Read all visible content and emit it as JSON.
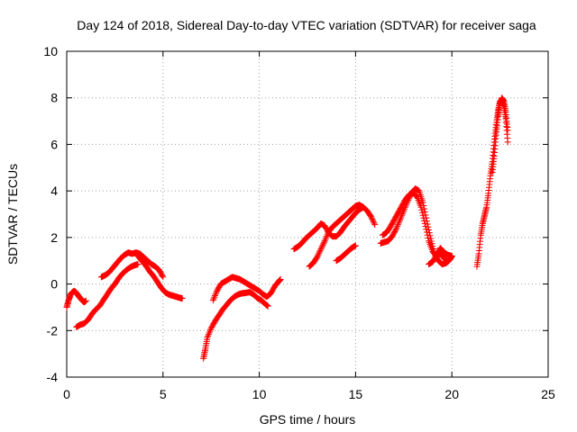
{
  "chart_data": {
    "type": "scatter",
    "title": "Day 124 of 2018, Sidereal Day-to-day VTEC variation (SDTVAR) for receiver saga",
    "xlabel": "GPS time / hours",
    "ylabel": "SDTVAR / TECUs",
    "xlim": [
      0,
      25
    ],
    "ylim": [
      -4,
      10
    ],
    "xticks": [
      0,
      5,
      10,
      15,
      20,
      25
    ],
    "yticks": [
      -4,
      -2,
      0,
      2,
      4,
      6,
      8,
      10
    ],
    "grid": true,
    "marker": "plus",
    "color": "#ff0000",
    "series": [
      {
        "name": "SDTVAR",
        "segments": [
          [
            [
              0.0,
              -1.0
            ],
            [
              0.1,
              -0.7
            ],
            [
              0.2,
              -0.45
            ],
            [
              0.3,
              -0.35
            ],
            [
              0.4,
              -0.3
            ],
            [
              0.5,
              -0.38
            ],
            [
              0.6,
              -0.5
            ],
            [
              0.7,
              -0.6
            ],
            [
              0.8,
              -0.7
            ],
            [
              0.9,
              -0.78
            ],
            [
              1.0,
              -0.72
            ]
          ],
          [
            [
              0.5,
              -1.85
            ],
            [
              0.7,
              -1.75
            ],
            [
              0.9,
              -1.7
            ],
            [
              1.1,
              -1.55
            ],
            [
              1.3,
              -1.3
            ],
            [
              1.5,
              -1.1
            ],
            [
              1.7,
              -0.95
            ],
            [
              1.9,
              -0.7
            ],
            [
              2.1,
              -0.45
            ],
            [
              2.3,
              -0.2
            ],
            [
              2.5,
              0.0
            ],
            [
              2.7,
              0.25
            ],
            [
              2.9,
              0.45
            ],
            [
              3.1,
              0.6
            ],
            [
              3.3,
              0.72
            ],
            [
              3.5,
              0.8
            ],
            [
              3.7,
              0.85
            ]
          ],
          [
            [
              1.8,
              0.3
            ],
            [
              2.0,
              0.38
            ],
            [
              2.2,
              0.5
            ],
            [
              2.4,
              0.7
            ],
            [
              2.6,
              0.9
            ],
            [
              2.8,
              1.1
            ],
            [
              3.0,
              1.25
            ],
            [
              3.2,
              1.35
            ],
            [
              3.4,
              1.3
            ],
            [
              3.6,
              1.35
            ],
            [
              3.8,
              1.3
            ],
            [
              4.0,
              1.15
            ],
            [
              4.2,
              1.0
            ],
            [
              4.4,
              0.85
            ],
            [
              4.6,
              0.75
            ],
            [
              4.8,
              0.6
            ],
            [
              5.0,
              0.3
            ]
          ],
          [
            [
              3.7,
              1.2
            ],
            [
              3.9,
              1.0
            ],
            [
              4.1,
              0.8
            ],
            [
              4.3,
              0.55
            ],
            [
              4.5,
              0.35
            ],
            [
              4.7,
              0.1
            ],
            [
              4.9,
              -0.15
            ],
            [
              5.1,
              -0.35
            ],
            [
              5.3,
              -0.45
            ],
            [
              5.5,
              -0.5
            ],
            [
              5.7,
              -0.55
            ],
            [
              5.9,
              -0.6
            ],
            [
              6.0,
              -0.62
            ]
          ],
          [
            [
              7.1,
              -3.2
            ],
            [
              7.2,
              -2.8
            ],
            [
              7.3,
              -2.3
            ],
            [
              7.5,
              -1.9
            ],
            [
              7.7,
              -1.6
            ],
            [
              7.9,
              -1.35
            ],
            [
              8.1,
              -1.1
            ],
            [
              8.3,
              -0.9
            ],
            [
              8.5,
              -0.7
            ],
            [
              8.7,
              -0.55
            ],
            [
              8.9,
              -0.45
            ],
            [
              9.1,
              -0.4
            ],
            [
              9.3,
              -0.38
            ],
            [
              9.5,
              -0.35
            ],
            [
              9.7,
              -0.45
            ],
            [
              9.9,
              -0.6
            ],
            [
              10.1,
              -0.7
            ],
            [
              10.3,
              -0.85
            ],
            [
              10.45,
              -0.95
            ]
          ],
          [
            [
              7.6,
              -0.7
            ],
            [
              7.8,
              -0.3
            ],
            [
              8.0,
              0.0
            ],
            [
              8.2,
              0.1
            ],
            [
              8.4,
              0.2
            ],
            [
              8.6,
              0.3
            ],
            [
              8.8,
              0.25
            ],
            [
              9.0,
              0.2
            ],
            [
              9.2,
              0.1
            ],
            [
              9.4,
              0.0
            ],
            [
              9.6,
              -0.1
            ],
            [
              9.8,
              -0.2
            ],
            [
              10.0,
              -0.3
            ],
            [
              10.2,
              -0.45
            ],
            [
              10.4,
              -0.55
            ],
            [
              10.6,
              -0.4
            ],
            [
              10.8,
              -0.1
            ],
            [
              11.0,
              0.1
            ],
            [
              11.1,
              0.2
            ]
          ],
          [
            [
              11.8,
              1.5
            ],
            [
              12.0,
              1.6
            ],
            [
              12.2,
              1.75
            ],
            [
              12.4,
              1.95
            ],
            [
              12.6,
              2.1
            ],
            [
              12.8,
              2.25
            ],
            [
              13.0,
              2.4
            ],
            [
              13.2,
              2.6
            ],
            [
              13.4,
              2.5
            ],
            [
              13.6,
              2.2
            ],
            [
              13.8,
              2.05
            ],
            [
              14.0,
              2.05
            ],
            [
              14.2,
              2.2
            ],
            [
              14.4,
              2.45
            ],
            [
              14.6,
              2.65
            ],
            [
              14.8,
              2.85
            ],
            [
              15.0,
              3.05
            ],
            [
              15.2,
              3.2
            ],
            [
              15.4,
              3.3
            ],
            [
              15.6,
              3.15
            ],
            [
              15.8,
              2.9
            ],
            [
              16.0,
              2.55
            ]
          ],
          [
            [
              12.6,
              0.75
            ],
            [
              12.8,
              0.9
            ],
            [
              13.0,
              1.15
            ],
            [
              13.2,
              1.5
            ],
            [
              13.4,
              1.85
            ],
            [
              13.6,
              2.25
            ],
            [
              13.8,
              2.45
            ],
            [
              14.0,
              2.6
            ],
            [
              14.2,
              2.75
            ],
            [
              14.4,
              2.9
            ],
            [
              14.6,
              3.05
            ],
            [
              14.8,
              3.2
            ],
            [
              15.0,
              3.35
            ],
            [
              15.2,
              3.4
            ],
            [
              15.4,
              3.3
            ]
          ],
          [
            [
              14.0,
              1.0
            ],
            [
              14.2,
              1.1
            ],
            [
              14.4,
              1.25
            ],
            [
              14.6,
              1.4
            ],
            [
              14.8,
              1.55
            ],
            [
              15.0,
              1.65
            ]
          ],
          [
            [
              16.3,
              1.75
            ],
            [
              16.5,
              1.8
            ],
            [
              16.7,
              1.85
            ],
            [
              16.9,
              2.05
            ],
            [
              17.1,
              2.35
            ],
            [
              17.3,
              2.75
            ],
            [
              17.5,
              3.15
            ],
            [
              17.7,
              3.55
            ],
            [
              17.9,
              3.9
            ],
            [
              18.1,
              4.1
            ],
            [
              18.3,
              4.0
            ],
            [
              18.5,
              3.5
            ],
            [
              18.7,
              2.7
            ],
            [
              18.9,
              1.95
            ],
            [
              19.1,
              1.3
            ],
            [
              19.3,
              1.0
            ],
            [
              19.5,
              0.85
            ],
            [
              19.7,
              0.9
            ],
            [
              19.9,
              1.05
            ],
            [
              20.0,
              1.2
            ]
          ],
          [
            [
              16.4,
              2.1
            ],
            [
              16.6,
              2.2
            ],
            [
              16.8,
              2.45
            ],
            [
              17.0,
              2.75
            ],
            [
              17.2,
              3.05
            ],
            [
              17.4,
              3.35
            ],
            [
              17.6,
              3.65
            ],
            [
              17.8,
              3.85
            ],
            [
              18.0,
              3.9
            ],
            [
              18.2,
              3.75
            ],
            [
              18.4,
              3.3
            ],
            [
              18.6,
              2.6
            ],
            [
              18.8,
              1.85
            ],
            [
              19.0,
              1.4
            ],
            [
              19.2,
              1.2
            ],
            [
              19.4,
              1.3
            ],
            [
              19.6,
              1.1
            ],
            [
              19.8,
              0.95
            ]
          ],
          [
            [
              18.8,
              0.85
            ],
            [
              19.0,
              0.95
            ],
            [
              19.2,
              1.25
            ],
            [
              19.4,
              1.55
            ],
            [
              19.6,
              1.35
            ],
            [
              19.8,
              1.25
            ],
            [
              20.0,
              1.2
            ]
          ],
          [
            [
              21.3,
              0.75
            ],
            [
              21.4,
              1.3
            ],
            [
              21.5,
              2.1
            ],
            [
              21.6,
              2.6
            ],
            [
              21.7,
              2.95
            ],
            [
              21.8,
              3.3
            ],
            [
              21.9,
              3.9
            ],
            [
              22.0,
              4.65
            ],
            [
              22.1,
              5.25
            ],
            [
              22.2,
              6.1
            ],
            [
              22.3,
              6.85
            ],
            [
              22.4,
              7.45
            ],
            [
              22.5,
              7.85
            ],
            [
              22.6,
              7.9
            ],
            [
              22.7,
              7.65
            ],
            [
              22.8,
              7.1
            ],
            [
              22.9,
              6.1
            ]
          ],
          [
            [
              22.1,
              4.8
            ],
            [
              22.2,
              5.5
            ],
            [
              22.3,
              6.4
            ],
            [
              22.4,
              7.2
            ],
            [
              22.5,
              7.75
            ],
            [
              22.6,
              8.0
            ],
            [
              22.7,
              7.85
            ],
            [
              22.8,
              7.4
            ],
            [
              22.9,
              6.6
            ]
          ]
        ]
      }
    ]
  }
}
